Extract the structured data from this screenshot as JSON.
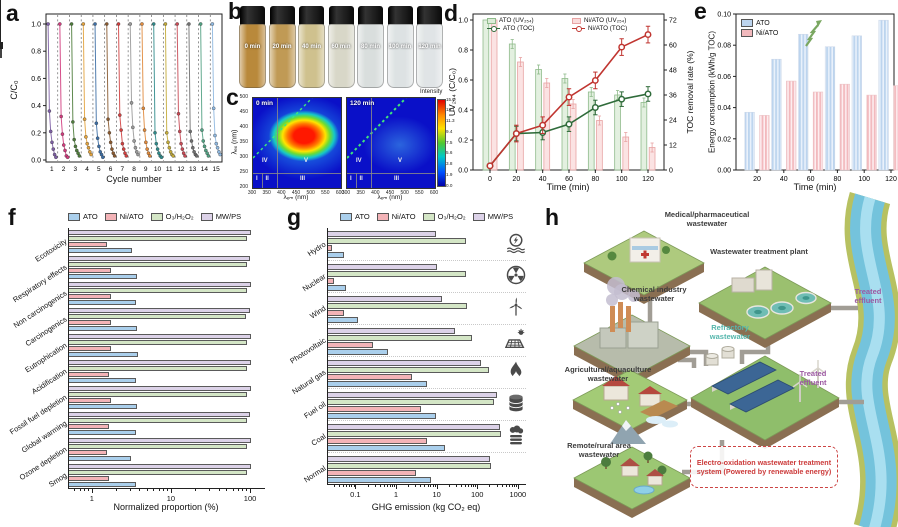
{
  "panels": {
    "a": "a",
    "b": "b",
    "c": "c",
    "d": "d",
    "e": "e",
    "f": "f",
    "g": "g",
    "h": "h"
  },
  "chart_data": [
    {
      "panel": "a",
      "type": "line",
      "xlabel": "Cycle number",
      "ylabel": "C/C₀",
      "ylim": [
        0,
        1
      ],
      "yticks": [
        "0.0",
        "0.2",
        "0.4",
        "0.6",
        "0.8",
        "1.0"
      ],
      "cycles": [
        {
          "cycle": 1,
          "color": "#7e5fa5",
          "values": [
            1.0,
            0.36,
            0.21,
            0.13,
            0.08,
            0.04,
            0.02
          ]
        },
        {
          "cycle": 2,
          "color": "#d13c7e",
          "values": [
            1.0,
            0.32,
            0.19,
            0.11,
            0.07,
            0.03,
            0.02
          ]
        },
        {
          "cycle": 3,
          "color": "#4f7d3c",
          "values": [
            1.0,
            0.28,
            0.15,
            0.1,
            0.07,
            0.05,
            0.03
          ]
        },
        {
          "cycle": 4,
          "color": "#e2a23c",
          "values": [
            1.0,
            0.3,
            0.17,
            0.12,
            0.09,
            0.06,
            0.04
          ]
        },
        {
          "cycle": 5,
          "color": "#3e6fa5",
          "values": [
            1.0,
            0.27,
            0.16,
            0.1,
            0.06,
            0.04,
            0.02
          ]
        },
        {
          "cycle": 6,
          "color": "#8a5a30",
          "values": [
            1.0,
            0.3,
            0.2,
            0.13,
            0.08,
            0.05,
            0.03
          ]
        },
        {
          "cycle": 7,
          "color": "#d24040",
          "values": [
            1.0,
            0.33,
            0.22,
            0.12,
            0.08,
            0.05,
            0.03
          ]
        },
        {
          "cycle": 8,
          "color": "#9a9a9a",
          "values": [
            1.0,
            0.42,
            0.24,
            0.14,
            0.09,
            0.06,
            0.04
          ]
        },
        {
          "cycle": 9,
          "color": "#e08a3c",
          "values": [
            1.0,
            0.38,
            0.22,
            0.13,
            0.08,
            0.05,
            0.03
          ]
        },
        {
          "cycle": 10,
          "color": "#2f8b8b",
          "values": [
            1.0,
            0.2,
            0.12,
            0.08,
            0.05,
            0.03,
            0.02
          ]
        },
        {
          "cycle": 11,
          "color": "#c4ac3a",
          "values": [
            1.0,
            0.2,
            0.13,
            0.09,
            0.06,
            0.04,
            0.03
          ]
        },
        {
          "cycle": 12,
          "color": "#c84a55",
          "values": [
            1.0,
            0.34,
            0.21,
            0.12,
            0.08,
            0.05,
            0.03
          ]
        },
        {
          "cycle": 13,
          "color": "#707070",
          "values": [
            1.0,
            0.21,
            0.14,
            0.09,
            0.06,
            0.04,
            0.03
          ]
        },
        {
          "cycle": 14,
          "color": "#52a183",
          "values": [
            1.0,
            0.22,
            0.14,
            0.1,
            0.07,
            0.05,
            0.03
          ]
        },
        {
          "cycle": 15,
          "color": "#8fb8e0",
          "values": [
            1.0,
            0.38,
            0.18,
            0.12,
            0.09,
            0.06,
            0.04
          ]
        }
      ]
    },
    {
      "panel": "d",
      "type": "bar+line",
      "xlabel": "Time (min)",
      "ylabel_left": "UV₂₅₄ (C/C₀)",
      "ylabel_right": "TOC removal rate (%)",
      "x": [
        0,
        20,
        40,
        60,
        80,
        100,
        120
      ],
      "ylim_left": [
        0,
        1
      ],
      "yticks_left": [
        "0.0",
        "0.2",
        "0.4",
        "0.6",
        "0.8",
        "1.0"
      ],
      "ylim_right": [
        0,
        72
      ],
      "yticks_right": [
        0,
        12,
        24,
        36,
        48,
        60,
        72
      ],
      "bars": [
        {
          "name": "ATO (UV₂₅₄)",
          "color": "#dcecd8",
          "edge": "#8fbb8b",
          "err": 0.03,
          "values": [
            1.0,
            0.84,
            0.67,
            0.61,
            0.52,
            0.5,
            0.45
          ]
        },
        {
          "name": "Ni/ATO (UV₂₅₄)",
          "color": "#fadcdc",
          "edge": "#e8a3a3",
          "err": 0.03,
          "values": [
            1.0,
            0.72,
            0.58,
            0.44,
            0.33,
            0.22,
            0.15
          ]
        }
      ],
      "lines": [
        {
          "name": "ATO (TOC)",
          "color": "#2f6b3a",
          "err": 3.5,
          "values": [
            2,
            17.5,
            18,
            22,
            30,
            34,
            36.5
          ]
        },
        {
          "name": "Ni/ATO (TOC)",
          "color": "#c03530",
          "err": 4,
          "values": [
            2,
            17.5,
            21.5,
            35,
            43,
            59,
            65
          ]
        }
      ]
    },
    {
      "panel": "e",
      "type": "bar",
      "xlabel": "Time (min)",
      "ylabel": "Energy consumption (kWh/g TOC)",
      "x": [
        20,
        40,
        60,
        80,
        100,
        120
      ],
      "ylim": [
        0,
        0.1
      ],
      "yticks": [
        "0.00",
        "0.02",
        "0.04",
        "0.06",
        "0.08",
        "0.10"
      ],
      "series": [
        {
          "name": "ATO",
          "color": "#bcd4ee",
          "values": [
            0.037,
            0.071,
            0.087,
            0.079,
            0.086,
            0.096
          ]
        },
        {
          "name": "Ni/ATO",
          "color": "#f2b9bd",
          "values": [
            0.035,
            0.057,
            0.05,
            0.055,
            0.048,
            0.054
          ]
        }
      ]
    },
    {
      "panel": "f",
      "type": "hbar",
      "xlabel": "Normalized proportion (%)",
      "xscale": "log",
      "xlim": [
        0.5,
        150
      ],
      "xticks": [
        1,
        10,
        100
      ],
      "categories": [
        "Ecotoxicity",
        "Respiratory effects",
        "Non carcinogenics",
        "Carcinogenics",
        "Eutrophication",
        "Acidification",
        "Fossil fuel depletion",
        "Global warming",
        "Ozone depletion",
        "Smog"
      ],
      "series": [
        {
          "name": "ATO",
          "color": "#aacfec",
          "values": [
            3.1,
            3.6,
            3.5,
            3.6,
            3.7,
            3.5,
            3.6,
            3.5,
            3.0,
            3.5
          ]
        },
        {
          "name": "Ni/ATO",
          "color": "#f3b3b7",
          "values": [
            1.5,
            1.7,
            1.7,
            1.7,
            1.7,
            1.6,
            1.7,
            1.6,
            1.5,
            1.6
          ]
        },
        {
          "name": "O₃/H₂O₂",
          "color": "#d4e6c6",
          "values": [
            90,
            88,
            90,
            87,
            90,
            88,
            90,
            89,
            88,
            90
          ]
        },
        {
          "name": "MW/PS",
          "color": "#dcd2e8",
          "values": [
            100,
            98,
            100,
            97,
            100,
            99,
            100,
            98,
            100,
            99
          ]
        }
      ]
    },
    {
      "panel": "g",
      "type": "hbar",
      "xlabel": "GHG emission (kg CO₂ eq)",
      "xscale": "log",
      "xlim": [
        0.02,
        1500
      ],
      "xticks": [
        0.1,
        1,
        10,
        100,
        1000
      ],
      "categories": [
        "Hydro",
        "Nuclear",
        "Wind",
        "Photovoltaic",
        "Natural gas",
        "Fuel oil",
        "Coal",
        "Normal"
      ],
      "icons": [
        "hydro-icon",
        "nuclear-icon",
        "wind-turbine-icon",
        "solar-panel-icon",
        "flame-icon",
        "oil-barrel-icon",
        "coal-icon",
        null
      ],
      "series": [
        {
          "name": "ATO",
          "color": "#aacfec",
          "values": [
            0.05,
            0.055,
            0.11,
            0.6,
            5.4,
            8.9,
            15,
            7
          ]
        },
        {
          "name": "Ni/ATO",
          "color": "#f3b3b7",
          "values": [
            0.025,
            0.028,
            0.05,
            0.26,
            2.3,
            3.8,
            5.5,
            3
          ]
        },
        {
          "name": "O₃/H₂O₂",
          "color": "#d4e6c6",
          "values": [
            50,
            51,
            52,
            70,
            185,
            245,
            360,
            210
          ]
        },
        {
          "name": "MW/PS",
          "color": "#dcd2e8",
          "values": [
            9,
            9.5,
            12.5,
            27,
            120,
            290,
            345,
            190
          ]
        }
      ]
    }
  ],
  "panel_b": {
    "vials": [
      {
        "label": "0 min",
        "liquid": "#b9893b"
      },
      {
        "label": "20 min",
        "liquid": "#c09a55"
      },
      {
        "label": "40 min",
        "liquid": "#cfc18e"
      },
      {
        "label": "60 min",
        "liquid": "#d8d7c8"
      },
      {
        "label": "80 min",
        "liquid": "#d9dedd"
      },
      {
        "label": "100 min",
        "liquid": "#dde2e3"
      },
      {
        "label": "120 min",
        "liquid": "#e0e4e6"
      }
    ]
  },
  "panel_c": {
    "plots": [
      {
        "label": "0 min"
      },
      {
        "label": "120 min"
      }
    ],
    "regions": [
      "I",
      "II",
      "III",
      "IV",
      "V"
    ],
    "xlabel": "λₑₘ (nm)",
    "ylabel": "λₑₓ (nm)",
    "xticks": [
      300,
      350,
      400,
      450,
      500,
      550,
      600
    ],
    "yticks": [
      200,
      250,
      300,
      350,
      400,
      450,
      500
    ],
    "colorbar": {
      "title": "Intensity",
      "ticks": [
        "15.0",
        "13.1",
        "11.3",
        "9.4",
        "7.5",
        "5.6",
        "3.8",
        "1.9",
        "0.0"
      ]
    }
  },
  "panel_h": {
    "labels": {
      "medical": "Medical/pharmaceutical wastewater",
      "wwtp": "Wastewater treatment plant",
      "chemical": "Chemical industry wastewater",
      "agricultural": "Agricultural/aquaculture wastewater",
      "remote": "Remote/rural area wastewater",
      "refractory": "Refractory wastewater",
      "treated_top": "Treated effluent",
      "treated_mid": "Treated effluent",
      "system": "Electro-oxidation wastewater treatment system (Powered by renewable energy)"
    },
    "colors": {
      "treated": "#9c59a2",
      "refractory": "#56b7ad",
      "system": "#cc3b3b"
    }
  }
}
